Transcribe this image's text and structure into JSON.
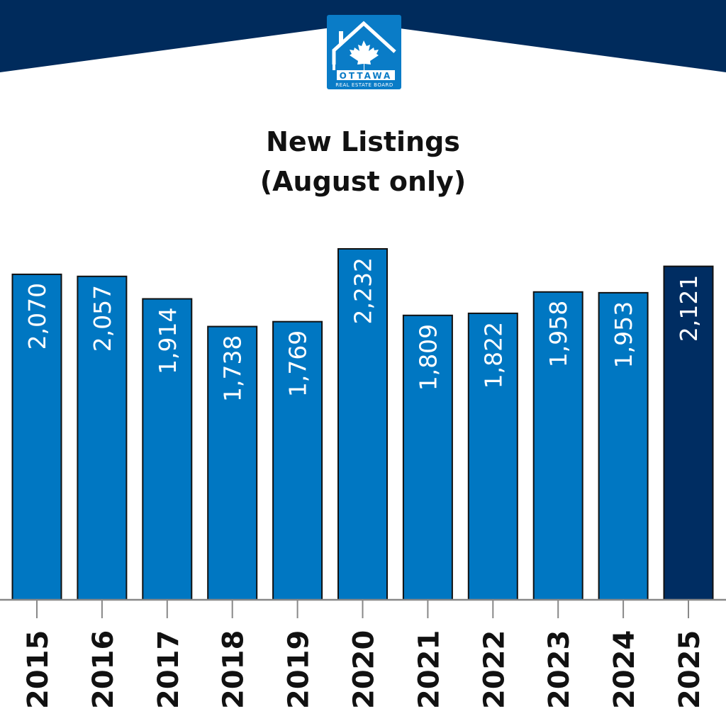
{
  "logo": {
    "text_line1": "OTTAWA",
    "text_line2": "REAL ESTATE BOARD"
  },
  "colors": {
    "header": "#002b5c",
    "bar": "#0077c2",
    "highlight_bar": "#002d62",
    "logo": "#0a7cc7"
  },
  "chart_data": {
    "type": "bar",
    "title": "New Listings",
    "subtitle": "(August only)",
    "categories": [
      "2015",
      "2016",
      "2017",
      "2018",
      "2019",
      "2020",
      "2021",
      "2022",
      "2023",
      "2024",
      "2025"
    ],
    "values": [
      2070,
      2057,
      1914,
      1738,
      1769,
      2232,
      1809,
      1822,
      1958,
      1953,
      2121
    ],
    "data_labels": [
      "2,070",
      "2,057",
      "1,914",
      "1,738",
      "1,769",
      "2,232",
      "1,809",
      "1,822",
      "1,958",
      "1,953",
      "2,121"
    ],
    "highlighted_category": "2025",
    "ylim": [
      0,
      2232
    ],
    "grid": false,
    "y_axis_visible": false,
    "legend": "none"
  }
}
